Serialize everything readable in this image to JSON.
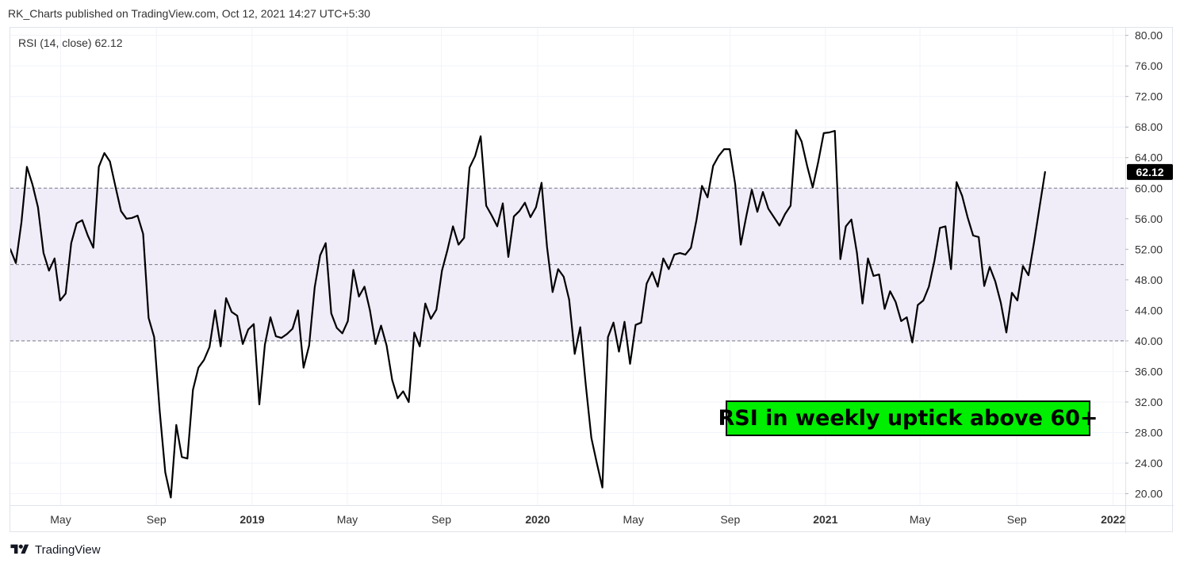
{
  "header": {
    "text": "RK_Charts published on TradingView.com, Oct 12, 2021 14:27 UTC+5:30"
  },
  "brand": {
    "name": "TradingView",
    "logo_icon": "tradingview-logo-icon"
  },
  "chart_data": {
    "type": "line",
    "title": "",
    "indicator_label": "RSI (14, close)",
    "last_value": "62.12",
    "last_value_num": 62.12,
    "annotation": "RSI in weekly uptick above 60+",
    "ylim": [
      18.5,
      81
    ],
    "y_ticks": [
      "80.00",
      "76.00",
      "72.00",
      "68.00",
      "64.00",
      "60.00",
      "56.00",
      "52.00",
      "48.00",
      "44.00",
      "40.00",
      "36.00",
      "32.00",
      "28.00",
      "24.00",
      "20.00"
    ],
    "band": {
      "upper": 60,
      "middle": 50,
      "lower": 40,
      "fill": "#f0ecf8"
    },
    "x_ticks": [
      {
        "label": "May",
        "week": 9.1,
        "bold": false
      },
      {
        "label": "Sep",
        "week": 26.4,
        "bold": false
      },
      {
        "label": "2019",
        "week": 43.7,
        "bold": true
      },
      {
        "label": "May",
        "week": 60.9,
        "bold": false
      },
      {
        "label": "Sep",
        "week": 77.9,
        "bold": false
      },
      {
        "label": "2020",
        "week": 95.3,
        "bold": true
      },
      {
        "label": "May",
        "week": 112.6,
        "bold": false
      },
      {
        "label": "Sep",
        "week": 130.1,
        "bold": false
      },
      {
        "label": "2021",
        "week": 147.3,
        "bold": true
      },
      {
        "label": "May",
        "week": 164.4,
        "bold": false
      },
      {
        "label": "Sep",
        "week": 181.9,
        "bold": false
      },
      {
        "label": "2022",
        "week": 199.3,
        "bold": true
      }
    ],
    "x_range": [
      0,
      201.5
    ],
    "series": [
      {
        "color": "#000000",
        "values": [
          52.0,
          50.2,
          55.5,
          62.8,
          60.5,
          57.5,
          51.5,
          49.2,
          50.8,
          45.3,
          46.2,
          52.8,
          55.4,
          55.8,
          53.8,
          52.2,
          62.8,
          64.6,
          63.5,
          60.2,
          57.0,
          56.0,
          56.1,
          56.4,
          54.0,
          43.0,
          40.5,
          30.8,
          22.8,
          19.5,
          29.0,
          24.8,
          24.6,
          33.6,
          36.5,
          37.5,
          39.2,
          44.0,
          39.3,
          45.6,
          43.8,
          43.3,
          39.6,
          41.5,
          42.2,
          31.7,
          39.5,
          43.1,
          40.6,
          40.4,
          40.9,
          41.6,
          44.0,
          36.5,
          39.4,
          47.0,
          51.2,
          52.8,
          43.6,
          41.7,
          41.0,
          42.6,
          49.3,
          45.8,
          47.1,
          44.0,
          39.6,
          42.0,
          39.4,
          34.9,
          32.5,
          33.4,
          32.0,
          41.1,
          39.3,
          44.9,
          42.9,
          44.1,
          49.2,
          51.9,
          55.0,
          52.6,
          53.5,
          62.7,
          64.2,
          66.8,
          57.7,
          56.4,
          55.0,
          58.0,
          51.0,
          56.3,
          57.0,
          58.1,
          56.2,
          57.5,
          60.7,
          52.3,
          46.4,
          49.4,
          48.4,
          45.4,
          38.3,
          41.8,
          34.2,
          27.3,
          24.0,
          20.8,
          40.5,
          42.4,
          38.6,
          42.5,
          37.0,
          42.1,
          42.4,
          47.5,
          49.0,
          47.1,
          50.8,
          49.4,
          51.3,
          51.5,
          51.3,
          52.2,
          55.8,
          60.3,
          58.8,
          62.9,
          64.2,
          65.1,
          65.1,
          60.5,
          52.6,
          56.3,
          59.8,
          56.9,
          59.5,
          57.3,
          56.2,
          55.1,
          56.6,
          57.7,
          67.6,
          66.1,
          62.9,
          60.1,
          63.4,
          67.2,
          67.3,
          67.5,
          50.7,
          55.0,
          55.9,
          51.5,
          44.9,
          50.8,
          48.5,
          48.7,
          44.2,
          46.5,
          45.1,
          42.6,
          43.1,
          39.8,
          44.7,
          45.3,
          47.1,
          50.5,
          54.8,
          55.0,
          49.4,
          60.8,
          59.0,
          56.2,
          53.8,
          53.6,
          47.2,
          49.7,
          47.8,
          45.0,
          41.1,
          46.3,
          45.3,
          49.8,
          48.6,
          52.9,
          57.5,
          62.12
        ]
      }
    ]
  }
}
